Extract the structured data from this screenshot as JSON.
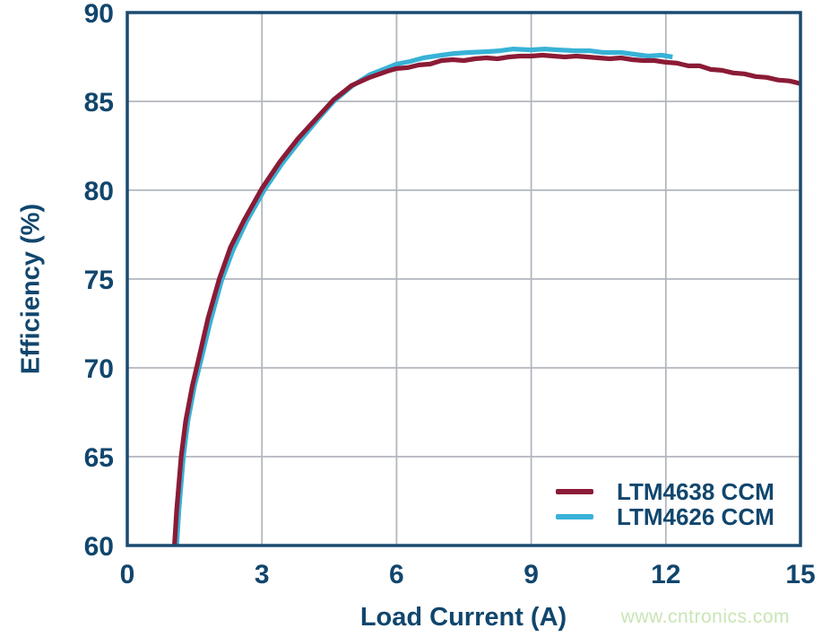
{
  "chart_data": {
    "type": "line",
    "title": "",
    "xlabel": "Load Current (A)",
    "ylabel": "Efficiency (%)",
    "xlim": [
      0,
      15
    ],
    "ylim": [
      60,
      90
    ],
    "xticks": [
      0,
      3,
      6,
      9,
      12,
      15
    ],
    "yticks": [
      60,
      65,
      70,
      75,
      80,
      85,
      90
    ],
    "grid": true,
    "legend_position": "lower-right-inside",
    "series": [
      {
        "name": "LTM4638 CCM",
        "color": "#8b1b36",
        "points": [
          [
            1.05,
            60.0
          ],
          [
            1.1,
            62.0
          ],
          [
            1.2,
            65.0
          ],
          [
            1.3,
            67.0
          ],
          [
            1.45,
            69.0
          ],
          [
            1.6,
            70.6
          ],
          [
            1.8,
            72.8
          ],
          [
            2.05,
            75.0
          ],
          [
            2.3,
            76.8
          ],
          [
            2.6,
            78.3
          ],
          [
            3.0,
            80.1
          ],
          [
            3.4,
            81.6
          ],
          [
            3.8,
            82.9
          ],
          [
            4.2,
            84.0
          ],
          [
            4.6,
            85.1
          ],
          [
            5.0,
            85.9
          ],
          [
            5.4,
            86.35
          ],
          [
            5.8,
            86.7
          ],
          [
            6.0,
            86.85
          ],
          [
            6.25,
            86.9
          ],
          [
            6.5,
            87.05
          ],
          [
            6.75,
            87.1
          ],
          [
            7.0,
            87.3
          ],
          [
            7.25,
            87.35
          ],
          [
            7.5,
            87.3
          ],
          [
            7.75,
            87.4
          ],
          [
            8.0,
            87.45
          ],
          [
            8.25,
            87.4
          ],
          [
            8.5,
            87.5
          ],
          [
            8.75,
            87.55
          ],
          [
            9.0,
            87.55
          ],
          [
            9.25,
            87.6
          ],
          [
            9.5,
            87.55
          ],
          [
            9.75,
            87.5
          ],
          [
            10.0,
            87.55
          ],
          [
            10.25,
            87.5
          ],
          [
            10.5,
            87.45
          ],
          [
            10.75,
            87.4
          ],
          [
            11.0,
            87.45
          ],
          [
            11.25,
            87.35
          ],
          [
            11.5,
            87.3
          ],
          [
            11.75,
            87.3
          ],
          [
            12.0,
            87.2
          ],
          [
            12.25,
            87.15
          ],
          [
            12.5,
            87.0
          ],
          [
            12.75,
            87.0
          ],
          [
            13.0,
            86.8
          ],
          [
            13.25,
            86.75
          ],
          [
            13.5,
            86.6
          ],
          [
            13.75,
            86.55
          ],
          [
            14.0,
            86.4
          ],
          [
            14.25,
            86.35
          ],
          [
            14.5,
            86.2
          ],
          [
            14.75,
            86.15
          ],
          [
            15.0,
            86.0
          ]
        ]
      },
      {
        "name": "LTM4626 CCM",
        "color": "#38b2d6",
        "points": [
          [
            1.1,
            60.0
          ],
          [
            1.15,
            62.0
          ],
          [
            1.25,
            65.0
          ],
          [
            1.35,
            67.0
          ],
          [
            1.5,
            69.0
          ],
          [
            1.65,
            70.5
          ],
          [
            1.85,
            72.6
          ],
          [
            2.1,
            74.9
          ],
          [
            2.35,
            76.6
          ],
          [
            2.65,
            78.2
          ],
          [
            3.05,
            80.0
          ],
          [
            3.45,
            81.5
          ],
          [
            3.85,
            82.8
          ],
          [
            4.25,
            84.0
          ],
          [
            4.6,
            85.0
          ],
          [
            5.0,
            85.85
          ],
          [
            5.4,
            86.5
          ],
          [
            5.8,
            86.9
          ],
          [
            6.0,
            87.1
          ],
          [
            6.3,
            87.25
          ],
          [
            6.6,
            87.45
          ],
          [
            7.0,
            87.6
          ],
          [
            7.3,
            87.7
          ],
          [
            7.6,
            87.75
          ],
          [
            8.0,
            87.8
          ],
          [
            8.3,
            87.85
          ],
          [
            8.6,
            87.95
          ],
          [
            9.0,
            87.9
          ],
          [
            9.3,
            87.95
          ],
          [
            9.6,
            87.9
          ],
          [
            10.0,
            87.85
          ],
          [
            10.3,
            87.85
          ],
          [
            10.6,
            87.75
          ],
          [
            11.0,
            87.75
          ],
          [
            11.3,
            87.65
          ],
          [
            11.6,
            87.55
          ],
          [
            11.9,
            87.6
          ],
          [
            12.15,
            87.5
          ]
        ]
      }
    ]
  },
  "watermark": {
    "text": "www.cntronics.com",
    "color": "#c9e5b5"
  },
  "colors": {
    "axis_text": "#11466d",
    "plot_border": "#1a4a70",
    "gridline": "#b2b6be",
    "background": "#ffffff"
  }
}
